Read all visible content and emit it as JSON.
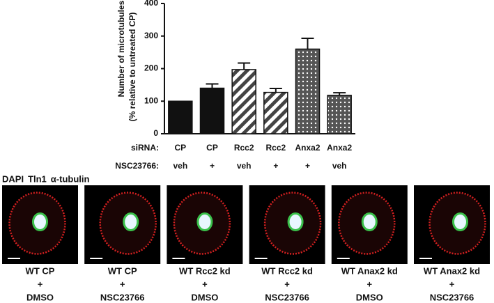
{
  "chart_data": {
    "type": "bar",
    "ylabel": [
      "Number of microtubules",
      "(% relative to untreated CP)"
    ],
    "row_titles": [
      "siRNA:",
      "NSC23766:"
    ],
    "categories": [
      "CP",
      "CP",
      "Rcc2",
      "Rcc2",
      "Anxa2",
      "Anxa2"
    ],
    "treatments": [
      "veh",
      "+",
      "veh",
      "+",
      "+",
      "veh"
    ],
    "values": [
      100,
      140,
      197,
      127,
      260,
      118
    ],
    "errors": [
      null,
      13,
      20,
      12,
      33,
      8
    ],
    "patterns": [
      "solid",
      "solid",
      "stripes",
      "stripes",
      "dots",
      "dots"
    ],
    "color": "#111111",
    "ylim": [
      0,
      400
    ],
    "yticks": [
      0,
      100,
      200,
      300,
      400
    ]
  },
  "legend": [
    {
      "text": "DAPI",
      "color": "#29a8e0"
    },
    {
      "text": "Tln1",
      "color": "#e02020"
    },
    {
      "text": "α-tubulin",
      "color": "#1a9a3a"
    }
  ],
  "panels": [
    {
      "lines": [
        "WT CP",
        "+",
        "DMSO"
      ]
    },
    {
      "lines": [
        "WT CP",
        "+",
        "NSC23766"
      ]
    },
    {
      "lines": [
        "WT Rcc2 kd",
        "+",
        "DMSO"
      ]
    },
    {
      "lines": [
        "WT Rcc2 kd",
        "+",
        "NSC23766"
      ]
    },
    {
      "lines": [
        "WT Anax2 kd",
        "+",
        "DMSO"
      ]
    },
    {
      "lines": [
        "WT Anax2 kd",
        "+",
        "NSC23766"
      ]
    }
  ]
}
